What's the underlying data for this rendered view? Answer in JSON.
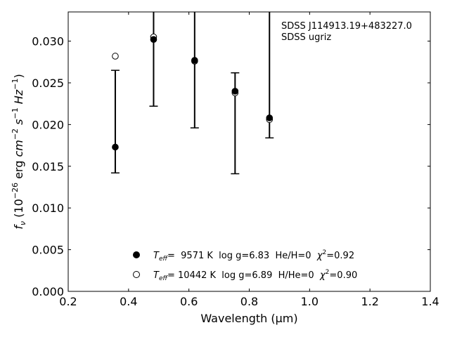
{
  "chart_data": {
    "type": "scatter",
    "xlabel": "Wavelength (μm)",
    "ylabel": "f_ν (10^-26 erg cm^-2 s^-1 Hz^-1)",
    "xlim": [
      0.2,
      1.4
    ],
    "ylim": [
      0.0,
      0.0335
    ],
    "xticks": [
      "0.2",
      "0.4",
      "0.6",
      "0.8",
      "1.0",
      "1.2",
      "1.4"
    ],
    "yticks": [
      "0.000",
      "0.005",
      "0.010",
      "0.015",
      "0.020",
      "0.025",
      "0.030"
    ],
    "annotation": [
      "SDSS J114913.19+483227.0",
      "SDSS ugriz"
    ],
    "legend_position": "bottom-center",
    "grid": false,
    "series": [
      {
        "name": "T_eff=  9571 K  log g=6.83  He/H=0  χ²=0.92",
        "marker": "filled-circle",
        "x": [
          0.356,
          0.483,
          0.619,
          0.753,
          0.867
        ],
        "y": [
          0.0173,
          0.0302,
          0.0277,
          0.024,
          0.0208
        ],
        "yerr_low": [
          0.0142,
          0.0222,
          0.0196,
          0.0141,
          0.0184
        ],
        "yerr_high": [
          0.0265,
          0.0335,
          0.0335,
          0.0262,
          0.0335
        ]
      },
      {
        "name": "T_eff= 10442 K  log g=6.89  H/He=0  χ²=0.90",
        "marker": "open-circle",
        "x": [
          0.356,
          0.483,
          0.619,
          0.753,
          0.867
        ],
        "y": [
          0.0282,
          0.0305,
          0.0276,
          0.0238,
          0.0206
        ]
      }
    ],
    "legend": [
      {
        "teff_label": "T",
        "teff_sub": "eff",
        "value": "=  9571 K  log g=6.83  He/H=0  ",
        "chi": "χ",
        "chi_sup": "2",
        "chi_value": "=0.92"
      },
      {
        "teff_label": "T",
        "teff_sub": "eff",
        "value": "= 10442 K  log g=6.89  H/He=0  ",
        "chi": "χ",
        "chi_sup": "2",
        "chi_value": "=0.90"
      }
    ]
  }
}
